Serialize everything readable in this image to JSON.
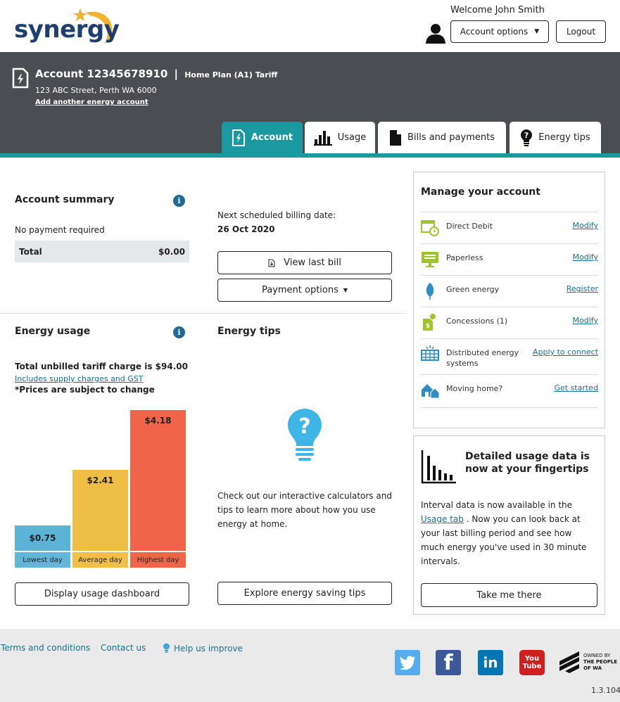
{
  "brand": {
    "logo_text": "synergy"
  },
  "header": {
    "welcome": "Welcome John Smith",
    "account_options_label": "Account options",
    "logout_label": "Logout"
  },
  "account": {
    "title": "Account 12345678910",
    "separator": "|",
    "tariff": "Home Plan (A1) Tariff",
    "address": "123 ABC Street, Perth WA 6000",
    "add_link": "Add another energy account"
  },
  "tabs": [
    {
      "label": "Account",
      "icon": "account-doc-icon",
      "active": true
    },
    {
      "label": "Usage",
      "icon": "bar-chart-icon",
      "active": false
    },
    {
      "label": "Bills and payments",
      "icon": "document-icon",
      "active": false
    },
    {
      "label": "Energy tips",
      "icon": "lightbulb-icon",
      "active": false
    }
  ],
  "summary": {
    "title": "Account summary",
    "status": "No payment required",
    "total_label": "Total",
    "total_value": "$0.00"
  },
  "billing": {
    "label": "Next scheduled billing date:",
    "date": "26 Oct 2020",
    "view_bill_label": "View last bill",
    "payment_options_label": "Payment options"
  },
  "usage": {
    "title": "Energy usage",
    "unbilled": "Total unbilled tariff charge is $94.00",
    "includes_link": "Includes supply charges and GST",
    "note": "*Prices are subject to change",
    "dashboard_button": "Display usage dashboard"
  },
  "chart_data": {
    "type": "bar",
    "categories": [
      "Lowest day",
      "Average day",
      "Highest day"
    ],
    "values": [
      0.75,
      2.41,
      4.18
    ],
    "value_labels": [
      "$0.75",
      "$2.41",
      "$4.18"
    ],
    "colors": [
      "#5bb3d6",
      "#efbe45",
      "#f0654a"
    ],
    "label_colors": [
      "#62b7d8",
      "#efbf48",
      "#f0654a"
    ]
  },
  "tips": {
    "title": "Energy tips",
    "body": "Check out our interactive calculators and tips to learn more about how you use energy at home.",
    "button": "Explore energy saving tips"
  },
  "manage": {
    "title": "Manage your account",
    "items": [
      {
        "label": "Direct Debit",
        "action": "Modify",
        "icon": "calendar-clock-icon",
        "color": "#9ec52a"
      },
      {
        "label": "Paperless",
        "action": "Modify",
        "icon": "monitor-icon",
        "color": "#9ec52a"
      },
      {
        "label": "Green energy",
        "action": "Register",
        "icon": "leaf-icon",
        "color": "#2f8fc4"
      },
      {
        "label": "Concessions (1)",
        "action": "Modify",
        "icon": "concession-doc-icon",
        "color": "#9ec52a"
      },
      {
        "label": "Distributed energy systems",
        "action": "Apply to connect",
        "icon": "solar-panel-icon",
        "color": "#2f8fc4"
      },
      {
        "label": "Moving home?",
        "action": "Get started",
        "icon": "moving-house-icon",
        "color": "#2f8fc4"
      }
    ]
  },
  "interval": {
    "title": "Detailed usage data is now at your fingertips",
    "body_before": "Interval data is now available in the",
    "body_link": "Usage tab",
    "body_after": ". Now you can look back at your last billing period and see how much energy you've used in 30 minute intervals.",
    "button": "Take me there"
  },
  "footer": {
    "terms": "Terms and conditions",
    "contact": "Contact us",
    "help": "Help us improve",
    "owned_by_1": "OWNED BY",
    "owned_by_2": "THE PEOPLE",
    "owned_by_3": "OF WA",
    "version": "1.3.104"
  },
  "social": {
    "twitter_color": "#55acee",
    "facebook_color": "#3b5998",
    "linkedin_color": "#0077b5",
    "youtube_color": "#cd201f",
    "youtube_text": "You Tube"
  }
}
